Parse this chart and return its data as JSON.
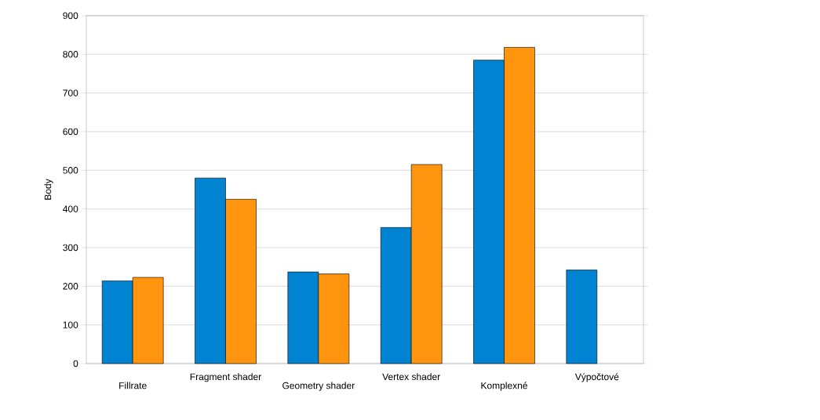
{
  "chart_data": {
    "type": "bar",
    "ylabel": "Body",
    "categories": [
      "Fillrate",
      "Fragment shader",
      "Geometry shader",
      "Vertex shader",
      "Komplexné",
      "Výpočtové"
    ],
    "series": [
      {
        "color": "#0084d1",
        "values": [
          214,
          480,
          237,
          352,
          785,
          242
        ]
      },
      {
        "color": "#ff950e",
        "values": [
          223,
          425,
          232,
          515,
          818,
          null
        ]
      }
    ],
    "ylim": [
      0,
      900
    ],
    "yticks": [
      0,
      100,
      200,
      300,
      400,
      500,
      600,
      700,
      800,
      900
    ],
    "grid": "y"
  }
}
